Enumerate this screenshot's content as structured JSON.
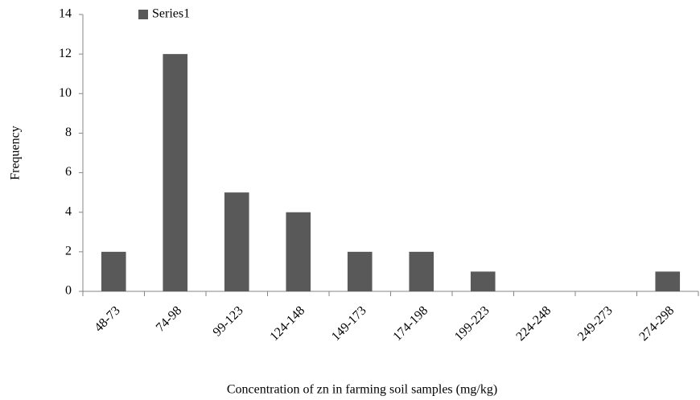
{
  "chart_data": {
    "type": "bar",
    "x_label": "Concentration of  zn in farming soil samples (mg/kg)",
    "y_label": "Frequency",
    "categories": [
      "48-73",
      "74-98",
      "99-123",
      "124-148",
      "149-173",
      "174-198",
      "199-223",
      "224-248",
      "249-273",
      "274-298"
    ],
    "series": [
      {
        "name": "Series1",
        "color": "#595959",
        "values": [
          2,
          12,
          5,
          4,
          2,
          2,
          1,
          0,
          0,
          1
        ]
      }
    ],
    "ylim": [
      0,
      14
    ],
    "yticks": [
      0,
      2,
      4,
      6,
      8,
      10,
      12,
      14
    ],
    "grid": false,
    "legend": "top-left"
  }
}
